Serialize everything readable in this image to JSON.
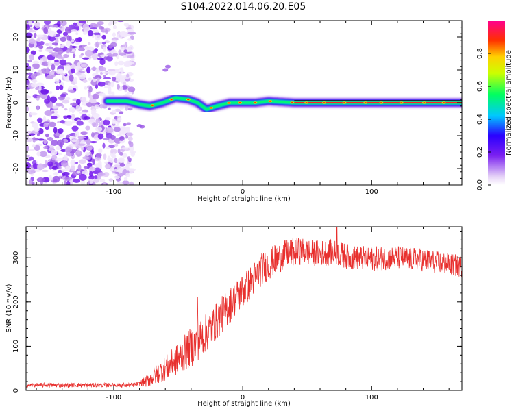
{
  "figure_title": "S104.2022.014.06.20.E05",
  "chart_data": [
    {
      "type": "heatmap",
      "xlabel": "Height of straight line (km)",
      "ylabel": "Frequency (Hz)",
      "xlim": [
        -168,
        170
      ],
      "ylim": [
        -25,
        25
      ],
      "xticks": [
        -100,
        0,
        100
      ],
      "yticks": [
        -20,
        -10,
        0,
        10,
        20
      ],
      "colorbar": {
        "label": "Normalized spectral amplitude",
        "range": [
          0,
          1
        ],
        "ticks": [
          0.0,
          0.2,
          0.4,
          0.6,
          0.8
        ],
        "colormap": "white-purple-blue-cyan-green-yellow-red-magenta"
      },
      "ridge": [
        {
          "x": -100,
          "y": 0.5
        },
        {
          "x": -90,
          "y": 0.5
        },
        {
          "x": -80,
          "y": -0.5
        },
        {
          "x": -72,
          "y": -1
        },
        {
          "x": -62,
          "y": 0
        },
        {
          "x": -52,
          "y": 1.5
        },
        {
          "x": -42,
          "y": 1
        },
        {
          "x": -35,
          "y": 0
        },
        {
          "x": -28,
          "y": -2
        },
        {
          "x": -20,
          "y": -1
        },
        {
          "x": -10,
          "y": 0
        },
        {
          "x": 0,
          "y": 0
        },
        {
          "x": 10,
          "y": 0
        },
        {
          "x": 20,
          "y": 0.5
        },
        {
          "x": 40,
          "y": 0
        },
        {
          "x": 100,
          "y": 0
        },
        {
          "x": 170,
          "y": 0
        }
      ],
      "noise_region_x": [
        -168,
        -85
      ]
    },
    {
      "type": "line",
      "xlabel": "Height of straight line (km)",
      "ylabel": "SNR (10 * v/v)",
      "xlim": [
        -168,
        170
      ],
      "ylim": [
        0,
        370
      ],
      "xticks": [
        -100,
        0,
        100
      ],
      "yticks": [
        0,
        100,
        200,
        300
      ],
      "line_color": "#e8302e",
      "trend": [
        {
          "x": -168,
          "y": 12
        },
        {
          "x": -85,
          "y": 12
        },
        {
          "x": -75,
          "y": 20
        },
        {
          "x": -65,
          "y": 40
        },
        {
          "x": -55,
          "y": 60
        },
        {
          "x": -45,
          "y": 85
        },
        {
          "x": -35,
          "y": 110
        },
        {
          "x": -25,
          "y": 140
        },
        {
          "x": -15,
          "y": 175
        },
        {
          "x": -5,
          "y": 210
        },
        {
          "x": 5,
          "y": 240
        },
        {
          "x": 15,
          "y": 275
        },
        {
          "x": 25,
          "y": 295
        },
        {
          "x": 35,
          "y": 310
        },
        {
          "x": 45,
          "y": 315
        },
        {
          "x": 55,
          "y": 310
        },
        {
          "x": 70,
          "y": 312
        },
        {
          "x": 85,
          "y": 300
        },
        {
          "x": 100,
          "y": 298
        },
        {
          "x": 120,
          "y": 300
        },
        {
          "x": 140,
          "y": 295
        },
        {
          "x": 155,
          "y": 288
        },
        {
          "x": 170,
          "y": 280
        }
      ],
      "noise_amplitude": [
        {
          "x": -168,
          "a": 5
        },
        {
          "x": -80,
          "a": 5
        },
        {
          "x": -70,
          "a": 20
        },
        {
          "x": -40,
          "a": 45
        },
        {
          "x": 0,
          "a": 40
        },
        {
          "x": 50,
          "a": 30
        },
        {
          "x": 170,
          "a": 25
        }
      ],
      "peaks": [
        {
          "x": -35,
          "y": 210
        },
        {
          "x": 73,
          "y": 370
        }
      ]
    }
  ]
}
